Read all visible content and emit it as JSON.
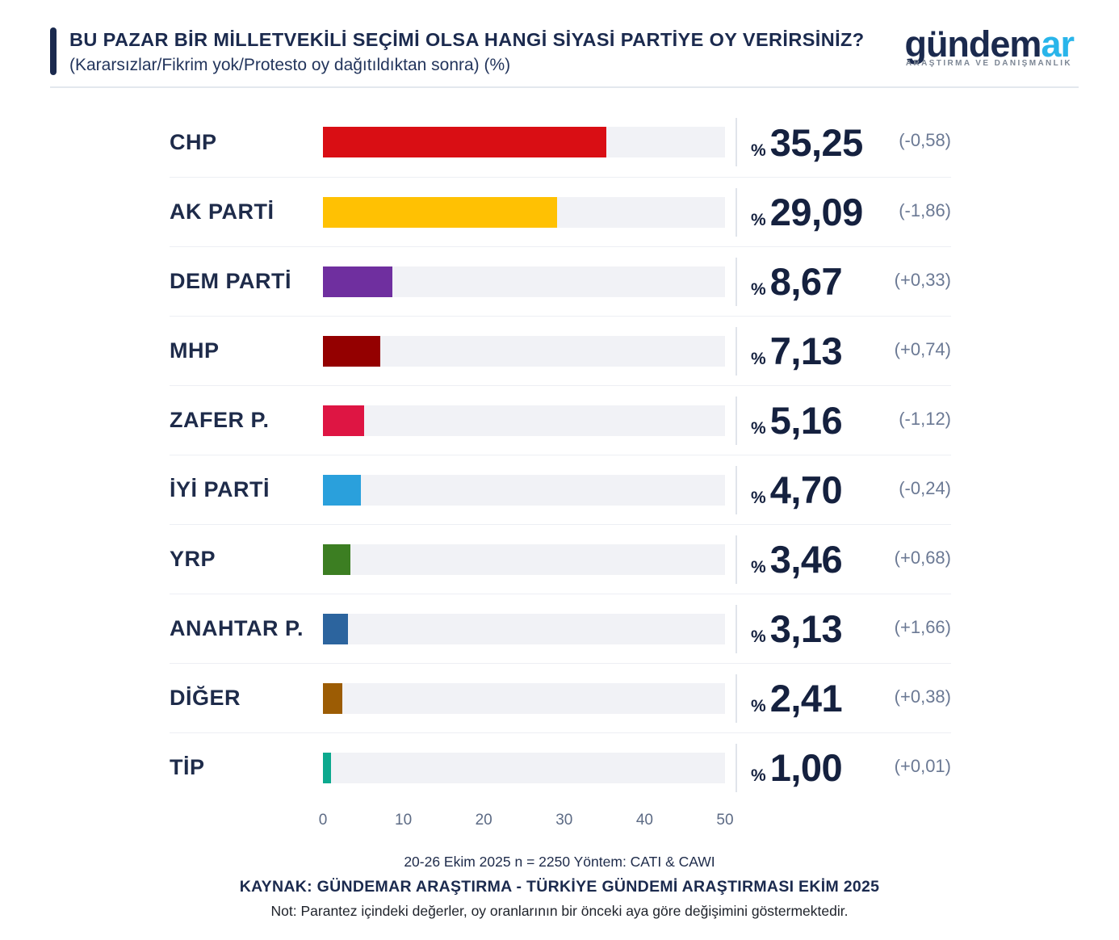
{
  "header": {
    "title": "BU PAZAR BİR MİLLETVEKİLİ SEÇİMİ OLSA HANGİ SİYASİ PARTİYE OY VERİRSİNİZ?",
    "subtitle": "(Kararsızlar/Fikrim yok/Protesto oy dağıtıldıktan sonra) (%)",
    "logo": {
      "word_part1": "gündem",
      "word_part2": "ar",
      "tagline": "ARAŞTIRMA VE DANIŞMANLIK",
      "color_part1": "#1b2a4e",
      "color_part2": "#29b5ea"
    }
  },
  "chart_data": {
    "type": "bar",
    "orientation": "horizontal",
    "title": "BU PAZAR BİR MİLLETVEKİLİ SEÇİMİ OLSA HANGİ SİYASİ PARTİYE OY VERİRSİNİZ?",
    "subtitle": "(Kararsızlar/Fikrim yok/Protesto oy dağıtıldıktan sonra) (%)",
    "categories": [
      "CHP",
      "AK PARTİ",
      "DEM PARTİ",
      "MHP",
      "ZAFER P.",
      "İYİ PARTİ",
      "YRP",
      "ANAHTAR P.",
      "DİĞER",
      "TİP"
    ],
    "values": [
      35.25,
      29.09,
      8.67,
      7.13,
      5.16,
      4.7,
      3.46,
      3.13,
      2.41,
      1.0
    ],
    "value_labels": [
      "35,25",
      "29,09",
      "8,67",
      "7,13",
      "5,16",
      "4,70",
      "3,46",
      "3,13",
      "2,41",
      "1,00"
    ],
    "changes": [
      "(-0,58)",
      "(-1,86)",
      "(+0,33)",
      "(+0,74)",
      "(-1,12)",
      "(-0,24)",
      "(+0,68)",
      "(+1,66)",
      "(+0,38)",
      "(+0,01)"
    ],
    "bar_colors": [
      "#d90e14",
      "#ffc103",
      "#6f2f9f",
      "#940000",
      "#de1543",
      "#2aa0dc",
      "#3c7e22",
      "#2c649e",
      "#9c5c04",
      "#0ca98e"
    ],
    "track_color": "#f1f2f6",
    "percent_prefix": "%",
    "xlim": [
      0,
      50
    ],
    "x_ticks": [
      "0",
      "10",
      "20",
      "30",
      "40",
      "50"
    ],
    "grid": false,
    "legend": false
  },
  "footer": {
    "line1": "20-26 Ekim 2025 n = 2250 Yöntem: CATI & CAWI",
    "line2": "KAYNAK: GÜNDEMAR ARAŞTIRMA - TÜRKİYE GÜNDEMİ ARAŞTIRMASI EKİM 2025",
    "line3": "Not: Parantez içindeki değerler, oy oranlarının bir önceki aya göre değişimini göstermektedir."
  }
}
